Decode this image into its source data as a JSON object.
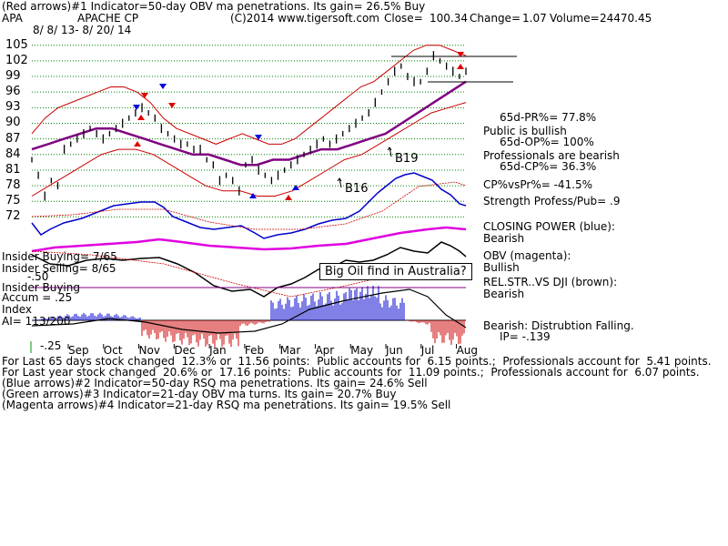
{
  "header": {
    "line1": "(Red arrows)#1 Indicator=50-day OBV ma penetrations. Its gain= 26.5% Buy",
    "ticker": "APA",
    "company": "APACHE CP",
    "copyright": "(C)2014 www.tigersoft.com",
    "close_label": "Close=",
    "close_value": "100.34",
    "change_label": "Change=",
    "change_value": "1.07",
    "volume_label": "Volume=",
    "volume_value": "24470.45",
    "date_range": "8/ 8/ 13- 8/ 20/ 14"
  },
  "right_panel": {
    "pr": "65d-PR%= 77.8%",
    "public": "Public is bullish",
    "op": "65d-OP%= 100%",
    "professionals": "Professionals are bearish",
    "cp": "65d-CP%= 36.3%",
    "cpvspr": "CP%vsPr%= -41.5%",
    "strength": "Strength Profess/Pub= .9",
    "closing_power": "CLOSING POWER (blue):",
    "closing_power_state": "Bearish",
    "obv": "OBV (magenta):",
    "obv_state": "Bullish",
    "relstr": "REL.STR..VS DJI (brown):",
    "relstr_state": "Bearish",
    "accum": "Bearish: Distrubtion Falling.",
    "ip": "IP= -.139"
  },
  "left_labels": {
    "insider_buying": "Insider Buying= 7/65",
    "insider_selling": "Insider Selling= 8/65",
    "insider_buying2": "Insider Buying",
    "accum": "Accum = .25",
    "index": "Index",
    "ai": "AI= 113/200",
    "neg25": "-.25",
    "neg50": "-.50"
  },
  "callout": "Big Oil find in Australia?",
  "annotations": {
    "b19": "B19",
    "b16": "B16"
  },
  "footer": {
    "line1": "For Last 65 days stock changed  12.3% or  11.56 points:  Public accounts for  6.15 points.;  Professionals account for  5.41 points.",
    "line2": "For Last year stock changed  20.6% or  17.16 points:  Public accounts for  11.09 points.;  Professionals account for  6.07 points.",
    "line3": "(Blue arrows)#2 Indicator=50-day RSQ ma penetrations. Its gain= 24.6% Sell",
    "line4": "(Green arrows)#3 Indicator=21-day OBV ma turns. Its gain= 20.7% Buy",
    "line5": "(Magenta arrows)#4 Indicator=21-day RSQ ma penetrations. Its gain= 19.5% Sell"
  },
  "colors": {
    "price": "#000000",
    "upper_band": "#cc0000",
    "ma": "#800080",
    "closing_power": "#0000cc",
    "obv": "#e000e0",
    "relstr": "#000000",
    "accum_pos": "#0000cc",
    "accum_neg": "#cc0000",
    "grid": "#008000"
  },
  "chart_data": {
    "type": "line",
    "title": "APACHE CP",
    "y_ticks": [
      105,
      102,
      99,
      96,
      93,
      90,
      87,
      84,
      81,
      78,
      75,
      72
    ],
    "x_labels": [
      "Sep",
      "Oct",
      "Nov",
      "Dec",
      "Jan",
      "Feb",
      "Mar",
      "Apr",
      "May",
      "Jun",
      "Jul",
      "Aug"
    ],
    "ylim": [
      70.5,
      106
    ],
    "price": [
      83,
      80,
      76,
      79,
      78,
      85,
      86,
      87,
      88,
      89,
      88,
      87,
      88,
      89,
      90,
      91,
      92,
      93,
      92,
      91,
      89,
      88,
      87,
      86,
      86,
      85,
      85,
      83,
      82,
      79,
      80,
      79,
      77,
      82,
      83,
      81,
      80,
      79,
      80,
      81,
      82,
      83,
      84,
      85,
      86,
      87,
      86,
      87,
      88,
      89,
      90,
      91,
      92,
      94,
      96,
      98,
      100,
      101,
      99,
      98,
      98,
      100,
      103,
      102,
      101,
      100,
      99,
      100
    ],
    "upper_band": [
      88,
      91,
      93,
      94,
      95,
      96,
      97,
      97,
      96,
      94,
      91,
      89,
      88,
      87,
      86,
      87,
      88,
      87,
      86,
      86,
      87,
      89,
      91,
      93,
      95,
      97,
      98,
      100,
      102,
      104,
      105,
      105,
      104,
      103
    ],
    "ma": [
      85,
      86,
      87,
      88,
      89,
      89,
      88,
      87,
      86,
      85,
      84,
      84,
      83,
      82,
      82,
      83,
      83,
      84,
      85,
      85,
      86,
      87,
      88,
      90,
      92,
      94,
      96,
      98
    ],
    "lower_band": [
      76,
      78,
      80,
      82,
      84,
      85,
      85,
      84,
      82,
      80,
      78,
      77,
      77,
      76,
      76,
      77,
      79,
      81,
      83,
      84,
      86,
      88,
      90,
      92,
      93,
      94
    ]
  }
}
